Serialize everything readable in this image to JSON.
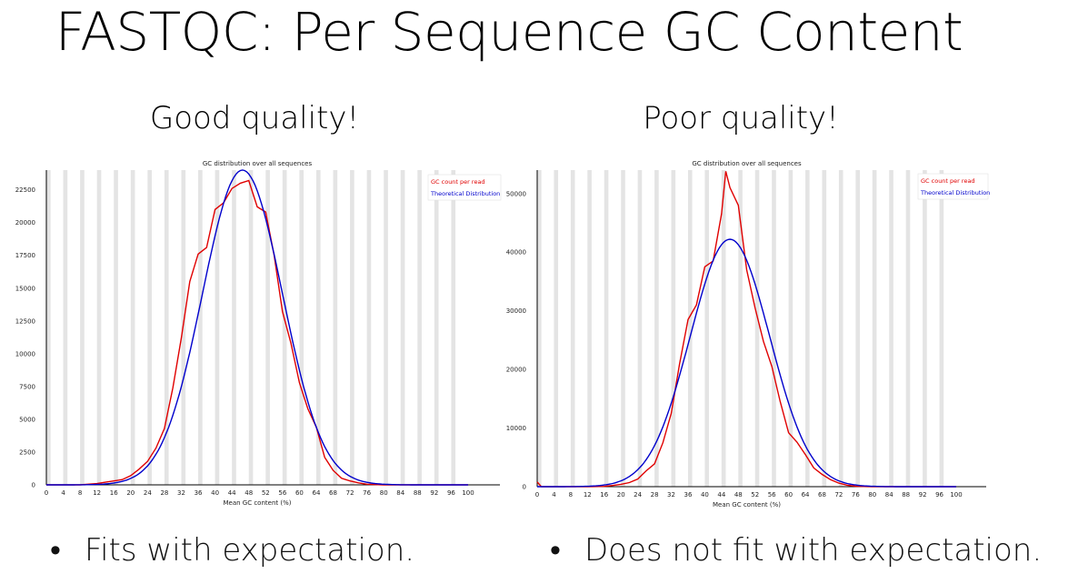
{
  "slide": {
    "title": "FASTQC: Per Sequence GC Content",
    "left_heading": "Good quality!",
    "right_heading": "Poor quality!",
    "bullets": {
      "symbol": "•",
      "left": "Fits with expectation.",
      "right": "Does not fit with expectation."
    }
  },
  "colors": {
    "gc_count": "#e00000",
    "theoretical": "#0000cc",
    "stripe": "#e4e4e4"
  },
  "chart_data": [
    {
      "type": "line",
      "title": "GC distribution over all sequences",
      "xlabel": "Mean GC content (%)",
      "ylabel": "",
      "xlim": [
        0,
        100
      ],
      "ylim": [
        0,
        24000
      ],
      "x_ticks": [
        0,
        4,
        8,
        12,
        16,
        20,
        24,
        28,
        32,
        36,
        40,
        44,
        48,
        52,
        56,
        60,
        64,
        68,
        72,
        76,
        80,
        84,
        88,
        92,
        96,
        100
      ],
      "y_ticks": [
        0,
        2500,
        5000,
        7500,
        10000,
        12500,
        15000,
        17500,
        20000,
        22500
      ],
      "grid": "alternating vertical stripes",
      "legend_position": "top-right",
      "series": [
        {
          "name": "GC count per read",
          "color": "#e00000",
          "x": [
            0,
            8,
            12,
            14,
            16,
            18,
            20,
            22,
            24,
            26,
            28,
            30,
            32,
            34,
            36,
            38,
            40,
            42,
            44,
            46,
            48,
            50,
            52,
            54,
            56,
            58,
            60,
            62,
            64,
            66,
            68,
            70,
            72,
            74,
            76,
            80,
            100
          ],
          "y": [
            0,
            0,
            100,
            200,
            300,
            400,
            700,
            1200,
            1800,
            2800,
            4300,
            7400,
            11200,
            15500,
            17600,
            18100,
            21000,
            21500,
            22600,
            23000,
            23200,
            21200,
            20800,
            17500,
            13200,
            10800,
            7800,
            5800,
            4400,
            2100,
            1100,
            500,
            300,
            150,
            50,
            0,
            0
          ]
        },
        {
          "name": "Theoretical Distribution",
          "color": "#0000cc",
          "mean": 46.5,
          "sd": 9.5,
          "peak": 24000
        }
      ]
    },
    {
      "type": "line",
      "title": "GC distribution over all sequences",
      "xlabel": "Mean GC content (%)",
      "ylabel": "",
      "xlim": [
        0,
        100
      ],
      "ylim": [
        0,
        54000
      ],
      "x_ticks": [
        0,
        4,
        8,
        12,
        16,
        20,
        24,
        28,
        32,
        36,
        40,
        44,
        48,
        52,
        56,
        60,
        64,
        68,
        72,
        76,
        80,
        84,
        88,
        92,
        96,
        100
      ],
      "y_ticks": [
        0,
        10000,
        20000,
        30000,
        40000,
        50000
      ],
      "grid": "alternating vertical stripes",
      "legend_position": "top-right",
      "series": [
        {
          "name": "GC count per read",
          "color": "#e00000",
          "x": [
            0,
            1,
            4,
            12,
            16,
            18,
            20,
            22,
            24,
            26,
            28,
            30,
            32,
            34,
            36,
            38,
            40,
            42,
            44,
            45,
            46,
            48,
            50,
            52,
            54,
            56,
            58,
            60,
            62,
            64,
            66,
            68,
            70,
            72,
            74,
            76,
            80,
            100
          ],
          "y": [
            800,
            0,
            0,
            0,
            50,
            200,
            400,
            700,
            1300,
            2700,
            3900,
            7500,
            12500,
            21000,
            28500,
            31000,
            37500,
            38500,
            46500,
            53800,
            51000,
            48000,
            37000,
            30500,
            24800,
            20500,
            14500,
            9200,
            7600,
            5500,
            3200,
            2100,
            1200,
            600,
            250,
            80,
            0,
            0
          ]
        },
        {
          "name": "Theoretical Distribution",
          "color": "#0000cc",
          "mean": 46,
          "sd": 9.5,
          "peak": 42200
        }
      ]
    }
  ]
}
